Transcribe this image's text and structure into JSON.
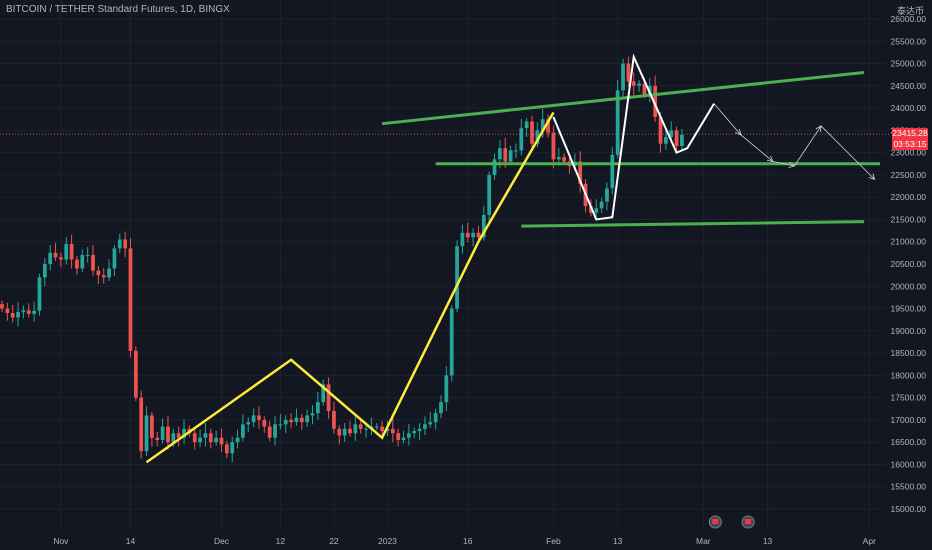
{
  "header": {
    "symbol_line": "BITCOIN / TETHER Standard Futures, 1D, BINGX",
    "currency": "泰达币"
  },
  "price_marker": {
    "price": "23415.28",
    "countdown": "03:53:15",
    "color": "#f23645"
  },
  "colors": {
    "background": "#131722",
    "up": "#26a69a",
    "down": "#ef5350",
    "grid": "#1e222d",
    "axis_text": "#b2b5be",
    "yellow_wave": "#ffeb3b",
    "green_lines": "#4caf50",
    "projection": "#ffffff"
  },
  "chart_data": {
    "type": "candlestick",
    "title": "BITCOIN / TETHER Standard Futures, 1D, BINGX",
    "ylim": [
      14800,
      26200
    ],
    "y_ticks": [
      15000,
      15500,
      16000,
      16500,
      17000,
      17500,
      18000,
      18500,
      19000,
      19500,
      20000,
      20500,
      21000,
      21500,
      22000,
      22500,
      23000,
      23500,
      24000,
      24500,
      25000,
      25500,
      26000
    ],
    "y_tick_labels": [
      "15000.00",
      "15500.00",
      "16000.00",
      "16500.00",
      "17000.00",
      "17500.00",
      "18000.00",
      "18500.00",
      "19000.00",
      "19500.00",
      "20000.00",
      "20500.00",
      "21000.00",
      "21500.00",
      "22000.00",
      "22500.00",
      "23000.00",
      "23500.00",
      "24000.00",
      "24500.00",
      "25000.00",
      "25500.00",
      "26000.00"
    ],
    "x_labels": [
      {
        "label": "Nov",
        "date": "2022-11-01"
      },
      {
        "label": "14",
        "date": "2022-11-14"
      },
      {
        "label": "Dec",
        "date": "2022-12-01"
      },
      {
        "label": "12",
        "date": "2022-12-12"
      },
      {
        "label": "22",
        "date": "2022-12-22"
      },
      {
        "label": "2023",
        "date": "2023-01-01"
      },
      {
        "label": "16",
        "date": "2023-01-16"
      },
      {
        "label": "Feb",
        "date": "2023-02-01"
      },
      {
        "label": "13",
        "date": "2023-02-13"
      },
      {
        "label": "Mar",
        "date": "2023-03-01"
      },
      {
        "label": "13",
        "date": "2023-03-13"
      },
      {
        "label": "Apr",
        "date": "2023-04-01"
      }
    ],
    "x_range": [
      "2022-10-21",
      "2023-04-03"
    ],
    "close": [
      19500,
      19400,
      19300,
      19420,
      19460,
      19380,
      19450,
      20200,
      20500,
      20750,
      20650,
      20600,
      20950,
      20600,
      20400,
      20700,
      20700,
      20350,
      20250,
      20200,
      20400,
      20850,
      21050,
      20850,
      18550,
      17500,
      16300,
      17100,
      16600,
      16550,
      16850,
      16500,
      16700,
      16600,
      16800,
      16700,
      16500,
      16600,
      16700,
      16500,
      16600,
      16450,
      16250,
      16500,
      16600,
      16900,
      16950,
      17100,
      17000,
      16850,
      16600,
      16900,
      16900,
      17000,
      16950,
      17050,
      16950,
      17100,
      17150,
      17400,
      17800,
      17200,
      16800,
      16650,
      16800,
      16700,
      16900,
      16800,
      16800,
      16850,
      16850,
      16750,
      16800,
      16700,
      16550,
      16600,
      16700,
      16750,
      16800,
      16900,
      16950,
      17150,
      17400,
      18000,
      19500,
      20900,
      21200,
      21100,
      21200,
      21100,
      21600,
      22500,
      22850,
      23100,
      22800,
      23050,
      23050,
      23550,
      23700,
      23200,
      23500,
      23750,
      23450,
      22850,
      22900,
      22800,
      22700,
      22800,
      22300,
      21800,
      21650,
      21750,
      21900,
      22200,
      22950,
      24400,
      25000,
      24600,
      24500,
      24550,
      24300,
      24500,
      23800,
      23200,
      23350,
      23500,
      23150,
      23400
    ],
    "projection_path": [
      {
        "date": "2023-03-03",
        "value": 24100
      },
      {
        "date": "2023-03-08",
        "value": 23400
      },
      {
        "date": "2023-03-14",
        "value": 22800
      },
      {
        "date": "2023-03-18",
        "value": 22700
      },
      {
        "date": "2023-03-23",
        "value": 23600
      },
      {
        "date": "2023-04-02",
        "value": 22400
      }
    ],
    "yellow_wave": [
      {
        "date": "2022-11-17",
        "value": 16050
      },
      {
        "date": "2022-12-14",
        "value": 18350
      },
      {
        "date": "2022-12-31",
        "value": 16600
      },
      {
        "date": "2023-01-18",
        "value": 21000
      },
      {
        "date": "2023-02-01",
        "value": 23900
      }
    ],
    "white_wave": [
      {
        "date": "2023-02-01",
        "value": 23800
      },
      {
        "date": "2023-02-09",
        "value": 21500
      },
      {
        "date": "2023-02-12",
        "value": 21550
      },
      {
        "date": "2023-02-16",
        "value": 25150
      },
      {
        "date": "2023-02-24",
        "value": 23000
      },
      {
        "date": "2023-02-26",
        "value": 23100
      },
      {
        "date": "2023-03-03",
        "value": 24100
      }
    ],
    "green_lines": [
      {
        "from": {
          "date": "2022-12-31",
          "value": 23650
        },
        "to": {
          "date": "2023-03-31",
          "value": 24800
        }
      },
      {
        "from": {
          "date": "2023-01-10",
          "value": 22750
        },
        "to": {
          "date": "2023-04-03",
          "value": 22750
        }
      },
      {
        "from": {
          "date": "2023-01-26",
          "value": 21350
        },
        "to": {
          "date": "2023-03-31",
          "value": 21450
        }
      }
    ]
  }
}
